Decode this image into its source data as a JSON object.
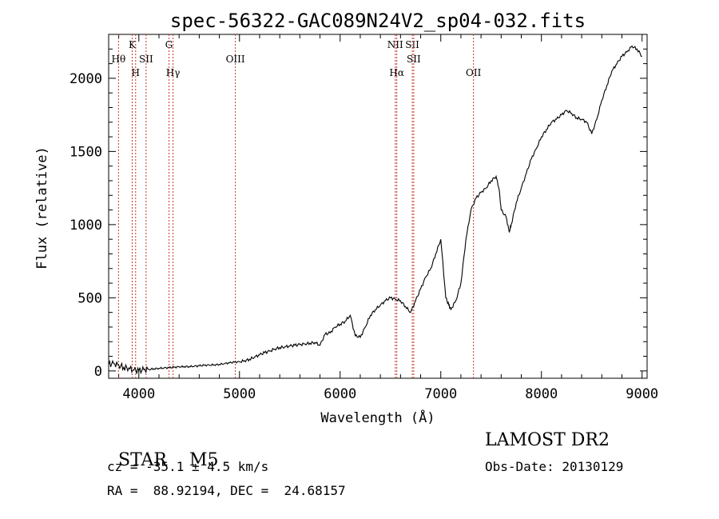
{
  "chart_data": {
    "type": "line",
    "title": "spec-56322-GAC089N24V2_sp04-032.fits",
    "xlabel": "Wavelength (Å)",
    "ylabel": "Flux (relative)",
    "xlim": [
      3700,
      9050
    ],
    "ylim": [
      -50,
      2300
    ],
    "xticks": [
      4000,
      5000,
      6000,
      7000,
      8000,
      9000
    ],
    "yticks": [
      0,
      500,
      1000,
      1500,
      2000
    ],
    "grid": false,
    "line_color": "#000000",
    "marker_color": "#c0392b",
    "series": [
      {
        "x": [
          3700,
          3750,
          3800,
          3850,
          3900,
          3950,
          4000,
          4050,
          4100,
          4150,
          4200,
          4250,
          4300,
          4350,
          4400,
          4450,
          4500,
          4550,
          4600,
          4650,
          4700,
          4750,
          4800,
          4850,
          4900,
          4950,
          5000,
          5050,
          5100,
          5150,
          5200,
          5250,
          5300,
          5350,
          5400,
          5450,
          5500,
          5550,
          5600,
          5650,
          5700,
          5750,
          5800,
          5850,
          5900,
          5950,
          6000,
          6050,
          6100,
          6150,
          6200,
          6250,
          6300,
          6350,
          6400,
          6450,
          6500,
          6550,
          6600,
          6650,
          6700,
          6750,
          6800,
          6850,
          6900,
          6950,
          7000,
          7050,
          7080,
          7100,
          7150,
          7200,
          7250,
          7300,
          7350,
          7400,
          7450,
          7500,
          7550,
          7580,
          7600,
          7650,
          7680,
          7700,
          7750,
          7800,
          7850,
          7900,
          7950,
          8000,
          8050,
          8100,
          8150,
          8200,
          8250,
          8300,
          8350,
          8400,
          8450,
          8500,
          8550,
          8600,
          8650,
          8700,
          8750,
          8800,
          8850,
          8900,
          8950,
          9000
        ],
        "y": [
          45,
          50,
          40,
          25,
          20,
          5,
          0,
          8,
          10,
          15,
          18,
          20,
          22,
          25,
          28,
          30,
          30,
          32,
          35,
          38,
          40,
          42,
          45,
          50,
          55,
          60,
          62,
          70,
          80,
          95,
          110,
          125,
          135,
          150,
          160,
          165,
          170,
          175,
          180,
          185,
          190,
          195,
          175,
          250,
          260,
          300,
          320,
          340,
          380,
          240,
          230,
          300,
          380,
          420,
          450,
          480,
          500,
          490,
          480,
          440,
          400,
          480,
          560,
          640,
          700,
          800,
          900,
          500,
          450,
          420,
          480,
          600,
          900,
          1100,
          1180,
          1220,
          1250,
          1300,
          1330,
          1240,
          1100,
          1050,
          950,
          1000,
          1150,
          1250,
          1350,
          1450,
          1520,
          1600,
          1650,
          1700,
          1720,
          1750,
          1780,
          1760,
          1730,
          1720,
          1700,
          1620,
          1720,
          1850,
          1950,
          2050,
          2100,
          2150,
          2180,
          2220,
          2200,
          2150
        ]
      }
    ],
    "lines": [
      {
        "wavelength": 3798,
        "label": "Hθ",
        "row": 2
      },
      {
        "wavelength": 3934,
        "label": "K",
        "row": 1
      },
      {
        "wavelength": 3968,
        "label": "H",
        "row": 3
      },
      {
        "wavelength": 4072,
        "label": "SII",
        "row": 2
      },
      {
        "wavelength": 4300,
        "label": "G",
        "row": 1
      },
      {
        "wavelength": 4340,
        "label": "Hγ",
        "row": 3
      },
      {
        "wavelength": 4959,
        "label": "OIII",
        "row": 2
      },
      {
        "wavelength": 6548,
        "label": "NII",
        "row": 1
      },
      {
        "wavelength": 6563,
        "label": "Hα",
        "row": 3
      },
      {
        "wavelength": 6717,
        "label": "SII",
        "row": 1
      },
      {
        "wavelength": 6731,
        "label": "SII",
        "row": 2
      },
      {
        "wavelength": 7325,
        "label": "OII",
        "row": 3
      }
    ]
  },
  "info": {
    "class": "STAR",
    "subclass": "M5",
    "survey": "LAMOST DR2",
    "cz": "cz = -35.1 ± 4.5 km/s",
    "obs_date": "Obs-Date: 20130129",
    "coords": "RA =  88.92194, DEC =  24.68157"
  }
}
